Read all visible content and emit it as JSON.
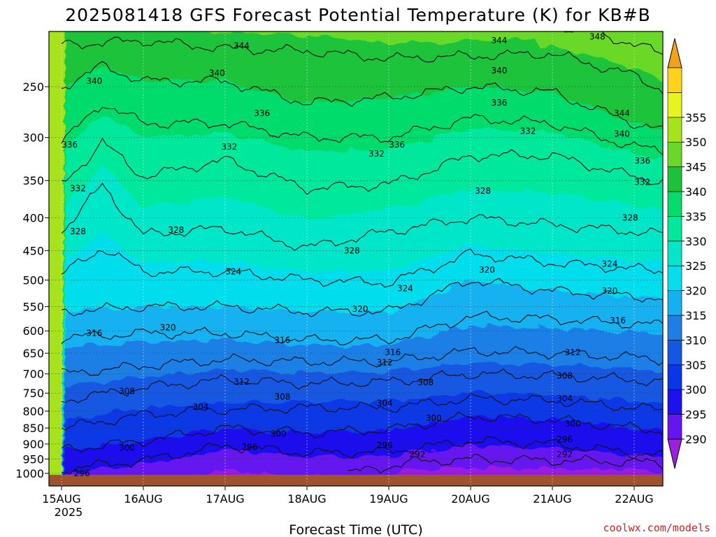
{
  "chart_data": {
    "type": "heatmap",
    "title": "2025081418 GFS Forecast Potential Temperature (K) for KB#B",
    "xlabel": "Forecast Time (UTC)",
    "ylabel": "",
    "credit": "coolwx.com/models",
    "x_ticks": [
      "15AUG",
      "16AUG",
      "17AUG",
      "18AUG",
      "19AUG",
      "20AUG",
      "21AUG",
      "22AUG"
    ],
    "x_year_label": "2025",
    "y_ticks": [
      250,
      300,
      350,
      400,
      450,
      500,
      550,
      600,
      650,
      700,
      750,
      800,
      850,
      900,
      950,
      1000
    ],
    "ylim": [
      1000,
      200
    ],
    "xlim": [
      0,
      7.8
    ],
    "y_scale": "log-pressure",
    "grid": true,
    "colorbar": {
      "levels": [
        290,
        295,
        300,
        305,
        310,
        315,
        320,
        325,
        330,
        335,
        340,
        345,
        350,
        355
      ],
      "tick_labels": [
        "290",
        "295",
        "300",
        "305",
        "310",
        "315",
        "320",
        "325",
        "330",
        "335",
        "340",
        "345",
        "350",
        "355"
      ],
      "colors": [
        "#9b1fe0",
        "#6614f0",
        "#1f10ee",
        "#0a37e6",
        "#1458e2",
        "#1d7fe6",
        "#14b1f0",
        "#06deee",
        "#05e6c9",
        "#00e89c",
        "#06dc6c",
        "#1cc33a",
        "#69d827",
        "#a6e31b",
        "#e8f51c",
        "#ffd21b",
        "#f1a21b"
      ]
    },
    "isotherm_levels": [
      292,
      296,
      300,
      304,
      308,
      312,
      316,
      320,
      324,
      328,
      332,
      336,
      340,
      344,
      348
    ],
    "isotherms": [
      {
        "level": 292,
        "x": [
          3.5,
          4.3,
          5.0,
          6.0,
          7.0,
          7.8
        ],
        "p": [
          1000,
          960,
          950,
          955,
          960,
          975
        ]
      },
      {
        "level": 296,
        "x": [
          0,
          1.0,
          2.0,
          3.0,
          4.0,
          5.0,
          6.0,
          7.0,
          7.8
        ],
        "p": [
          985,
          955,
          905,
          930,
          925,
          890,
          900,
          930,
          945
        ]
      },
      {
        "level": 300,
        "x": [
          0,
          1.0,
          2.0,
          3.0,
          4.0,
          5.0,
          6.0,
          7.0,
          7.8
        ],
        "p": [
          920,
          890,
          850,
          865,
          855,
          815,
          825,
          850,
          870
        ]
      },
      {
        "level": 304,
        "x": [
          0,
          1.0,
          2.0,
          3.0,
          4.0,
          5.0,
          6.0,
          7.0,
          7.8
        ],
        "p": [
          850,
          810,
          795,
          790,
          790,
          765,
          770,
          790,
          805
        ]
      },
      {
        "level": 308,
        "x": [
          0,
          1.0,
          2.0,
          3.0,
          4.0,
          5.0,
          6.0,
          7.0,
          7.8
        ],
        "p": [
          770,
          735,
          715,
          725,
          720,
          700,
          705,
          715,
          730
        ]
      },
      {
        "level": 312,
        "x": [
          0,
          1.0,
          2.0,
          3.0,
          4.0,
          5.0,
          6.0,
          7.0,
          7.8
        ],
        "p": [
          700,
          680,
          665,
          670,
          670,
          645,
          650,
          660,
          670
        ]
      },
      {
        "level": 316,
        "x": [
          0,
          1.0,
          2.0,
          3.0,
          4.0,
          5.0,
          6.0,
          7.0,
          7.8
        ],
        "p": [
          615,
          605,
          605,
          620,
          620,
          570,
          575,
          585,
          590
        ]
      },
      {
        "level": 320,
        "x": [
          0,
          1.0,
          2.0,
          3.0,
          4.0,
          5.0,
          6.0,
          7.0,
          7.8
        ],
        "p": [
          560,
          550,
          550,
          560,
          560,
          500,
          520,
          530,
          540
        ]
      },
      {
        "level": 324,
        "x": [
          0,
          0.5,
          1.0,
          2.0,
          3.0,
          4.0,
          5.0,
          6.0,
          7.0,
          7.8
        ],
        "p": [
          490,
          445,
          485,
          485,
          500,
          505,
          455,
          470,
          480,
          490
        ]
      },
      {
        "level": 328,
        "x": [
          0,
          0.5,
          1.0,
          2.0,
          3.0,
          4.0,
          5.0,
          6.0,
          7.0,
          7.8
        ],
        "p": [
          420,
          355,
          425,
          415,
          445,
          420,
          400,
          410,
          420,
          430
        ]
      },
      {
        "level": 332,
        "x": [
          0,
          0.5,
          1.0,
          2.0,
          3.0,
          4.0,
          5.0,
          6.0,
          7.0,
          7.8
        ],
        "p": [
          355,
          305,
          345,
          325,
          360,
          355,
          320,
          320,
          345,
          360
        ]
      },
      {
        "level": 336,
        "x": [
          0,
          0.5,
          1.0,
          2.0,
          3.0,
          4.0,
          5.0,
          6.0,
          7.0,
          7.8
        ],
        "p": [
          305,
          265,
          285,
          285,
          300,
          300,
          280,
          285,
          310,
          320
        ]
      },
      {
        "level": 340,
        "x": [
          0,
          0.5,
          1.0,
          2.0,
          3.0,
          4.0,
          5.0,
          6.0,
          7.0,
          7.8
        ],
        "p": [
          250,
          232,
          245,
          245,
          265,
          260,
          250,
          255,
          285,
          300
        ]
      },
      {
        "level": 344,
        "x": [
          0,
          1.0,
          2.0,
          3.0,
          4.0,
          5.0,
          6.0,
          7.0,
          7.8
        ],
        "p": [
          215,
          212,
          218,
          220,
          226,
          224,
          222,
          240,
          270
        ]
      },
      {
        "level": 348,
        "x": [
          5.8,
          6.5,
          7.0,
          7.5,
          7.8
        ],
        "p": [
          200,
          205,
          215,
          225,
          240
        ]
      }
    ],
    "contour_labels": [
      {
        "text": "344",
        "x": 2.2,
        "p": 216
      },
      {
        "text": "344",
        "x": 5.35,
        "p": 212
      },
      {
        "text": "348",
        "x": 6.55,
        "p": 209
      },
      {
        "text": "340",
        "x": 0.4,
        "p": 245
      },
      {
        "text": "340",
        "x": 1.9,
        "p": 238
      },
      {
        "text": "340",
        "x": 5.35,
        "p": 236
      },
      {
        "text": "344",
        "x": 6.85,
        "p": 275
      },
      {
        "text": "336",
        "x": 2.45,
        "p": 275
      },
      {
        "text": "336",
        "x": 5.35,
        "p": 265
      },
      {
        "text": "340",
        "x": 6.85,
        "p": 296
      },
      {
        "text": "336",
        "x": 0.1,
        "p": 308
      },
      {
        "text": "332",
        "x": 2.05,
        "p": 310
      },
      {
        "text": "332",
        "x": 3.85,
        "p": 318
      },
      {
        "text": "336",
        "x": 4.1,
        "p": 308
      },
      {
        "text": "332",
        "x": 5.7,
        "p": 293
      },
      {
        "text": "336",
        "x": 7.1,
        "p": 326
      },
      {
        "text": "332",
        "x": 0.2,
        "p": 360
      },
      {
        "text": "332",
        "x": 7.1,
        "p": 352
      },
      {
        "text": "328",
        "x": 5.15,
        "p": 363
      },
      {
        "text": "328",
        "x": 0.2,
        "p": 420
      },
      {
        "text": "328",
        "x": 1.4,
        "p": 418
      },
      {
        "text": "328",
        "x": 6.95,
        "p": 400
      },
      {
        "text": "328",
        "x": 3.55,
        "p": 450
      },
      {
        "text": "324",
        "x": 2.1,
        "p": 485
      },
      {
        "text": "324",
        "x": 6.7,
        "p": 472
      },
      {
        "text": "320",
        "x": 5.2,
        "p": 482
      },
      {
        "text": "324",
        "x": 4.2,
        "p": 515
      },
      {
        "text": "320",
        "x": 6.7,
        "p": 520
      },
      {
        "text": "320",
        "x": 3.65,
        "p": 555
      },
      {
        "text": "316",
        "x": 6.8,
        "p": 578
      },
      {
        "text": "320",
        "x": 1.3,
        "p": 593
      },
      {
        "text": "316",
        "x": 0.4,
        "p": 605
      },
      {
        "text": "316",
        "x": 2.7,
        "p": 620
      },
      {
        "text": "316",
        "x": 4.05,
        "p": 648
      },
      {
        "text": "312",
        "x": 6.25,
        "p": 648
      },
      {
        "text": "312",
        "x": 3.95,
        "p": 672
      },
      {
        "text": "308",
        "x": 6.15,
        "p": 705
      },
      {
        "text": "312",
        "x": 2.2,
        "p": 720
      },
      {
        "text": "308",
        "x": 4.45,
        "p": 722
      },
      {
        "text": "308",
        "x": 0.8,
        "p": 745
      },
      {
        "text": "308",
        "x": 2.7,
        "p": 760
      },
      {
        "text": "304",
        "x": 6.15,
        "p": 765
      },
      {
        "text": "304",
        "x": 3.95,
        "p": 777
      },
      {
        "text": "304",
        "x": 1.7,
        "p": 788
      },
      {
        "text": "300",
        "x": 4.55,
        "p": 820
      },
      {
        "text": "300",
        "x": 6.25,
        "p": 837
      },
      {
        "text": "300",
        "x": 2.65,
        "p": 868
      },
      {
        "text": "296",
        "x": 6.15,
        "p": 885
      },
      {
        "text": "300",
        "x": 0.8,
        "p": 912
      },
      {
        "text": "296",
        "x": 2.3,
        "p": 910
      },
      {
        "text": "296",
        "x": 3.95,
        "p": 905
      },
      {
        "text": "292",
        "x": 4.35,
        "p": 935
      },
      {
        "text": "292",
        "x": 6.15,
        "p": 935
      },
      {
        "text": "296",
        "x": 0.25,
        "p": 1000
      }
    ]
  }
}
